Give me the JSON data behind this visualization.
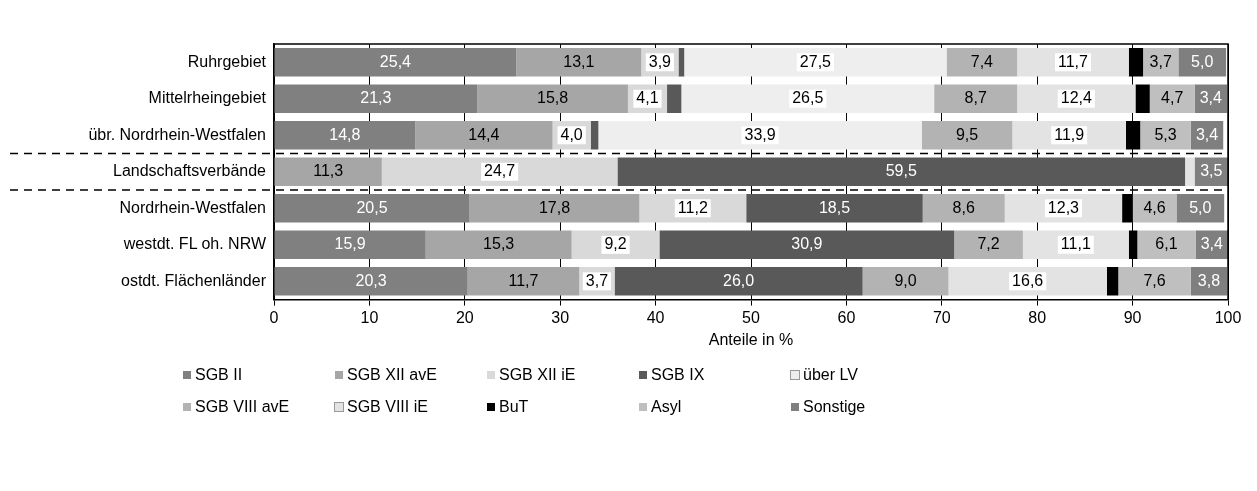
{
  "chart_data": {
    "type": "bar",
    "orientation": "horizontal",
    "stacked": true,
    "xlabel": "Anteile in %",
    "categories": [
      "Ruhrgebiet",
      "Mittelrheingebiet",
      "übr. Nordrhein-Westfalen",
      "Landschaftsverbände",
      "Nordrhein-Westfalen",
      "westdt. FL oh. NRW",
      "ostdt. Flächenländer"
    ],
    "xlim": [
      0,
      100
    ],
    "xticks": [
      0,
      10,
      20,
      30,
      40,
      50,
      60,
      70,
      80,
      90,
      100
    ],
    "grid": "x",
    "legend": "bottom",
    "series": [
      {
        "name": "SGB II",
        "color": "#808080",
        "values": [
          25.4,
          21.3,
          14.8,
          null,
          20.5,
          15.9,
          20.3
        ],
        "value_labels": [
          "25,4",
          "21,3",
          "14,8",
          null,
          "20,5",
          "15,9",
          "20,3"
        ]
      },
      {
        "name": "SGB XII avE",
        "color": "#a6a6a6",
        "values": [
          13.1,
          15.8,
          14.4,
          11.3,
          17.8,
          15.3,
          11.7
        ],
        "value_labels": [
          "13,1",
          "15,8",
          "14,4",
          "11,3",
          "17,8",
          "15,3",
          "11,7"
        ]
      },
      {
        "name": "SGB XII iE",
        "color": "#d9d9d9",
        "values": [
          3.9,
          4.1,
          4.0,
          24.7,
          11.2,
          9.2,
          3.7
        ],
        "value_labels": [
          "3,9",
          "4,1",
          "4,0",
          "24,7",
          "11,2",
          "9,2",
          "3,7"
        ]
      },
      {
        "name": "SGB IX",
        "color": "#595959",
        "values": [
          0.6,
          1.5,
          0.8,
          59.5,
          18.5,
          30.9,
          26.0
        ],
        "value_labels": [
          null,
          null,
          null,
          "59,5",
          "18,5",
          "30,9",
          "26,0"
        ]
      },
      {
        "name": "über LV",
        "color": "#eeeeee",
        "values": [
          27.5,
          26.5,
          33.9,
          null,
          null,
          null,
          null
        ],
        "value_labels": [
          "27,5",
          "26,5",
          "33,9",
          null,
          null,
          null,
          null
        ]
      },
      {
        "name": "SGB VIII avE",
        "color": "#b3b3b3",
        "values": [
          7.4,
          8.7,
          9.5,
          null,
          8.6,
          7.2,
          9.0
        ],
        "value_labels": [
          "7,4",
          "8,7",
          "9,5",
          null,
          "8,6",
          "7,2",
          "9,0"
        ]
      },
      {
        "name": "SGB VIII iE",
        "color": "#e3e3e3",
        "values": [
          11.7,
          12.4,
          11.9,
          1.0,
          12.3,
          11.1,
          16.6
        ],
        "value_labels": [
          "11,7",
          "12,4",
          "11,9",
          null,
          "12,3",
          "11,1",
          "16,6"
        ]
      },
      {
        "name": "BuT",
        "color": "#000000",
        "values": [
          1.5,
          1.5,
          1.5,
          null,
          1.1,
          0.9,
          1.2
        ]
      },
      {
        "name": "Asyl",
        "color": "#bfbfbf",
        "values": [
          3.7,
          4.7,
          5.3,
          null,
          4.6,
          6.1,
          7.6
        ],
        "value_labels": [
          "3,7",
          "4,7",
          "5,3",
          null,
          "4,6",
          "6,1",
          "7,6"
        ]
      },
      {
        "name": "Sonstige",
        "color": "#7f7f7f",
        "values": [
          5.0,
          3.4,
          3.4,
          3.5,
          5.0,
          3.4,
          3.8
        ],
        "value_labels": [
          "5,0",
          "3,4",
          "3,4",
          "3,5",
          "5,0",
          "3,4",
          "3,8"
        ]
      }
    ]
  }
}
